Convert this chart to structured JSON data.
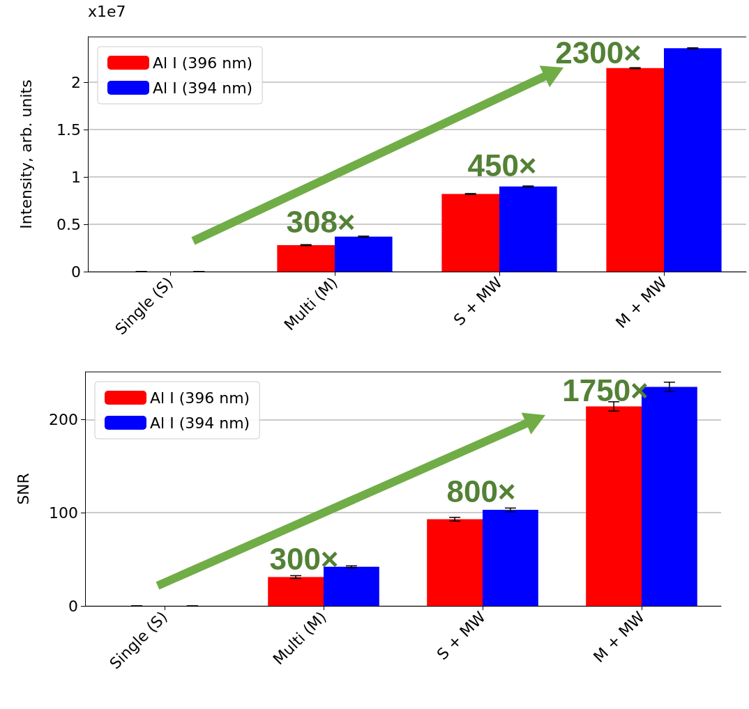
{
  "chart_data": [
    {
      "type": "bar",
      "ylabel": "Intensity, arb. units",
      "categories": [
        "Single (S)",
        "Multi (M)",
        "S + MW",
        "M + MW"
      ],
      "series": [
        {
          "name": "Al I (396 nm)",
          "color": "#ff0000",
          "values": [
            0,
            0.28,
            0.82,
            2.15
          ],
          "errors": [
            0,
            0.005,
            0.005,
            0.005
          ]
        },
        {
          "name": "Al I (394 nm)",
          "color": "#0000ff",
          "values": [
            0,
            0.37,
            0.9,
            2.36
          ],
          "errors": [
            0,
            0.005,
            0.005,
            0.005
          ]
        }
      ],
      "ylim": [
        0,
        2.48
      ],
      "yticks": [
        0,
        0.5,
        1,
        1.5,
        2
      ],
      "grid": "y",
      "legend": "top left",
      "annotations": [
        "x1e7",
        "308×",
        "450×",
        "2300×"
      ]
    },
    {
      "type": "bar",
      "ylabel": "SNR",
      "categories": [
        "Single (S)",
        "Multi (M)",
        "S + MW",
        "M + MW"
      ],
      "series": [
        {
          "name": "Al I (396 nm)",
          "color": "#ff0000",
          "values": [
            0,
            31,
            93,
            214
          ],
          "errors": [
            0,
            1.5,
            2,
            5
          ]
        },
        {
          "name": "Al I (394 nm)",
          "color": "#0000ff",
          "values": [
            0,
            42,
            103,
            235
          ],
          "errors": [
            0,
            1,
            2,
            5
          ]
        }
      ],
      "ylim": [
        0,
        251
      ],
      "yticks": [
        0,
        100,
        200
      ],
      "grid": "y",
      "legend": "top left",
      "annotations": [
        "300×",
        "800×",
        "1750×"
      ]
    }
  ]
}
